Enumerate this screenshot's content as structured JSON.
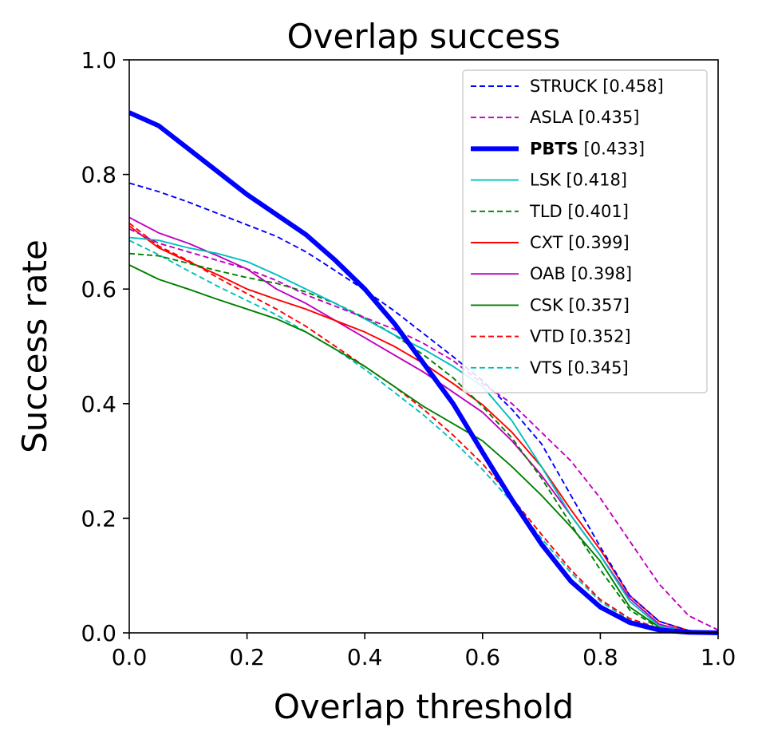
{
  "chart_data": {
    "type": "line",
    "title": "Overlap success",
    "xlabel": "Overlap threshold",
    "ylabel": "Success rate",
    "xlim": [
      0,
      1
    ],
    "ylim": [
      0,
      1
    ],
    "xticks": [
      "0.0",
      "0.2",
      "0.4",
      "0.6",
      "0.8",
      "1.0"
    ],
    "yticks": [
      "0.0",
      "0.2",
      "0.4",
      "0.6",
      "0.8",
      "1.0"
    ],
    "legend_position": "top-right",
    "x": [
      0,
      0.05,
      0.1,
      0.15,
      0.2,
      0.25,
      0.3,
      0.35,
      0.4,
      0.45,
      0.5,
      0.55,
      0.6,
      0.65,
      0.7,
      0.75,
      0.8,
      0.85,
      0.9,
      0.95,
      1.0
    ],
    "series": [
      {
        "name": "STRUCK",
        "score": "[0.458]",
        "bold": false,
        "color": "#0000ff",
        "dash": "dashed",
        "width": "thin",
        "values": [
          0.785,
          0.77,
          0.752,
          0.732,
          0.712,
          0.692,
          0.665,
          0.632,
          0.598,
          0.562,
          0.522,
          0.482,
          0.44,
          0.39,
          0.33,
          0.24,
          0.15,
          0.065,
          0.02,
          0.004,
          0.0
        ]
      },
      {
        "name": "ASLA",
        "score": "[0.435]",
        "bold": false,
        "color": "#bf00bf",
        "dash": "dashed",
        "width": "thin",
        "values": [
          0.705,
          0.68,
          0.665,
          0.65,
          0.635,
          0.615,
          0.59,
          0.57,
          0.55,
          0.53,
          0.505,
          0.475,
          0.435,
          0.4,
          0.35,
          0.3,
          0.235,
          0.16,
          0.085,
          0.03,
          0.005
        ]
      },
      {
        "name": "PBTS",
        "score": "[0.433]",
        "bold": true,
        "color": "#0000ff",
        "dash": "solid",
        "width": "thick",
        "values": [
          0.908,
          0.885,
          0.845,
          0.805,
          0.765,
          0.73,
          0.695,
          0.65,
          0.6,
          0.54,
          0.47,
          0.4,
          0.315,
          0.232,
          0.155,
          0.09,
          0.045,
          0.018,
          0.005,
          0.001,
          0.0
        ]
      },
      {
        "name": "LSK",
        "score": "[0.418]",
        "bold": false,
        "color": "#00bfbf",
        "dash": "solid",
        "width": "thin",
        "values": [
          0.69,
          0.685,
          0.672,
          0.662,
          0.648,
          0.625,
          0.6,
          0.575,
          0.548,
          0.52,
          0.495,
          0.465,
          0.43,
          0.37,
          0.29,
          0.205,
          0.135,
          0.055,
          0.012,
          0.002,
          0.0
        ]
      },
      {
        "name": "TLD",
        "score": "[0.401]",
        "bold": false,
        "color": "#008000",
        "dash": "dashed",
        "width": "thin",
        "values": [
          0.662,
          0.658,
          0.645,
          0.632,
          0.62,
          0.61,
          0.595,
          0.575,
          0.55,
          0.52,
          0.485,
          0.445,
          0.395,
          0.34,
          0.27,
          0.19,
          0.11,
          0.04,
          0.008,
          0.001,
          0.0
        ]
      },
      {
        "name": "CXT",
        "score": "[0.399]",
        "bold": false,
        "color": "#ff0000",
        "dash": "solid",
        "width": "thin",
        "values": [
          0.71,
          0.672,
          0.648,
          0.625,
          0.6,
          0.582,
          0.565,
          0.545,
          0.525,
          0.5,
          0.47,
          0.435,
          0.398,
          0.35,
          0.29,
          0.215,
          0.145,
          0.065,
          0.02,
          0.004,
          0.0
        ]
      },
      {
        "name": "OAB",
        "score": "[0.398]",
        "bold": false,
        "color": "#bf00bf",
        "dash": "solid",
        "width": "thin",
        "values": [
          0.725,
          0.698,
          0.68,
          0.658,
          0.635,
          0.6,
          0.575,
          0.545,
          0.515,
          0.485,
          0.455,
          0.42,
          0.385,
          0.335,
          0.275,
          0.205,
          0.135,
          0.06,
          0.015,
          0.002,
          0.0
        ]
      },
      {
        "name": "CSK",
        "score": "[0.357]",
        "bold": false,
        "color": "#008000",
        "dash": "solid",
        "width": "thin",
        "values": [
          0.642,
          0.617,
          0.6,
          0.582,
          0.565,
          0.548,
          0.525,
          0.495,
          0.465,
          0.43,
          0.395,
          0.365,
          0.335,
          0.29,
          0.24,
          0.185,
          0.125,
          0.045,
          0.01,
          0.001,
          0.0
        ]
      },
      {
        "name": "VTD",
        "score": "[0.352]",
        "bold": false,
        "color": "#ff0000",
        "dash": "dashed",
        "width": "thin",
        "values": [
          0.715,
          0.675,
          0.65,
          0.62,
          0.592,
          0.565,
          0.535,
          0.5,
          0.465,
          0.43,
          0.39,
          0.345,
          0.295,
          0.235,
          0.172,
          0.11,
          0.058,
          0.025,
          0.008,
          0.002,
          0.0
        ]
      },
      {
        "name": "VTS",
        "score": "[0.345]",
        "bold": false,
        "color": "#00bfbf",
        "dash": "dashed",
        "width": "thin",
        "values": [
          0.685,
          0.66,
          0.632,
          0.605,
          0.58,
          0.555,
          0.525,
          0.495,
          0.46,
          0.42,
          0.38,
          0.335,
          0.285,
          0.228,
          0.165,
          0.105,
          0.055,
          0.022,
          0.006,
          0.001,
          0.0
        ]
      }
    ]
  }
}
